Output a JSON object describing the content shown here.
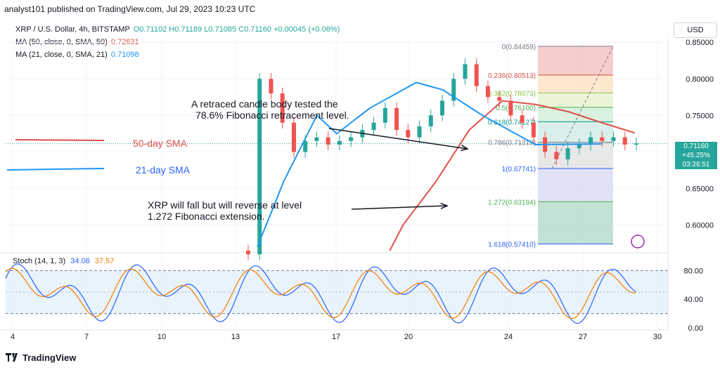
{
  "header": {
    "publisher": "analyst101 published on TradingView.com, Jul 29, 2023 10:23 UTC"
  },
  "legend": {
    "symbol_line": {
      "name": "XRP / U.S. Dollar, 4h, BITSTAMP",
      "ohlc": "O0.71102 H0.71189 L0.71085 C0.71160 +0.00045 (+0.06%)"
    },
    "ma50": {
      "name": "MA (50, close, 0, SMA, 50)",
      "value": "0.72631"
    },
    "ma21": {
      "name": "MA (21, close, 0, SMA, 21)",
      "value": "0.71098"
    }
  },
  "currency_button": "USD",
  "price_label": {
    "price": "0.71160",
    "change": "+45.25%",
    "countdown": "03:26:51"
  },
  "annotations": {
    "retrace_l1": "A retraced candle body tested the",
    "retrace_l2": "78.6% Fibonacci retracement level.",
    "fall_l1": "XRP  will fall but will reverse at level",
    "fall_l2": "1.272 Fibonacci extension.",
    "sma50": "50-day SMA",
    "sma21": "21-day SMA"
  },
  "footer": "TradingView",
  "stoch": {
    "name": "Stoch (14, 1, 3)",
    "k": "34.06",
    "d": "37.57",
    "levels": [
      80,
      20
    ],
    "ticks": [
      "80.00",
      "40.00",
      "0.00"
    ]
  },
  "colors": {
    "up": "#26a69a",
    "down": "#ef5350",
    "ma50": "#e0504a",
    "ma21": "#2196f3",
    "k": "#2962ff",
    "d": "#f57c00"
  },
  "chart_data": {
    "type": "candlestick",
    "title": "XRP / U.S. Dollar, 4h, BITSTAMP",
    "x_ticks": [
      "4",
      "7",
      "10",
      "13",
      "17",
      "20",
      "24",
      "27",
      "30"
    ],
    "y_ticks": [
      "0.85000",
      "0.80000",
      "0.75000",
      "0.70000",
      "0.65000",
      "0.60000"
    ],
    "ylim": [
      0.565,
      0.855
    ],
    "fibonacci": [
      {
        "label": "0(0.84459)",
        "value": 0.84459
      },
      {
        "label": "0.236(0.80513)",
        "value": 0.80513
      },
      {
        "label": "0.382(0.78073)",
        "value": 0.78073
      },
      {
        "label": "0.5(0.76100)",
        "value": 0.761
      },
      {
        "label": "0.618(0.74127)",
        "value": 0.74127
      },
      {
        "label": "0.786(0.71319)",
        "value": 0.71319
      },
      {
        "label": "1(0.67741)",
        "value": 0.67741
      },
      {
        "label": "1.272(0.63194)",
        "value": 0.63194
      },
      {
        "label": "1.618(0.57410)",
        "value": 0.5741
      }
    ],
    "candles_close": [
      0.56,
      0.8,
      0.78,
      0.74,
      0.7,
      0.715,
      0.72,
      0.71,
      0.715,
      0.72,
      0.73,
      0.74,
      0.76,
      0.73,
      0.72,
      0.735,
      0.75,
      0.77,
      0.8,
      0.82,
      0.79,
      0.775,
      0.77,
      0.75,
      0.74,
      0.72,
      0.7,
      0.69,
      0.705,
      0.71,
      0.72,
      0.715,
      0.72,
      0.71,
      0.7116
    ],
    "ma50": [
      [
        0.58,
        0.565
      ],
      [
        0.6,
        0.6
      ],
      [
        0.65,
        0.66
      ],
      [
        0.7,
        0.73
      ],
      [
        0.75,
        0.77
      ],
      [
        0.8,
        0.765
      ],
      [
        0.85,
        0.755
      ],
      [
        0.9,
        0.74
      ],
      [
        0.95,
        0.726
      ]
    ],
    "ma21": [
      [
        0.38,
        0.57
      ],
      [
        0.42,
        0.66
      ],
      [
        0.47,
        0.75
      ],
      [
        0.5,
        0.725
      ],
      [
        0.55,
        0.76
      ],
      [
        0.62,
        0.795
      ],
      [
        0.66,
        0.785
      ],
      [
        0.72,
        0.75
      ],
      [
        0.8,
        0.71
      ],
      [
        0.9,
        0.711
      ]
    ]
  }
}
